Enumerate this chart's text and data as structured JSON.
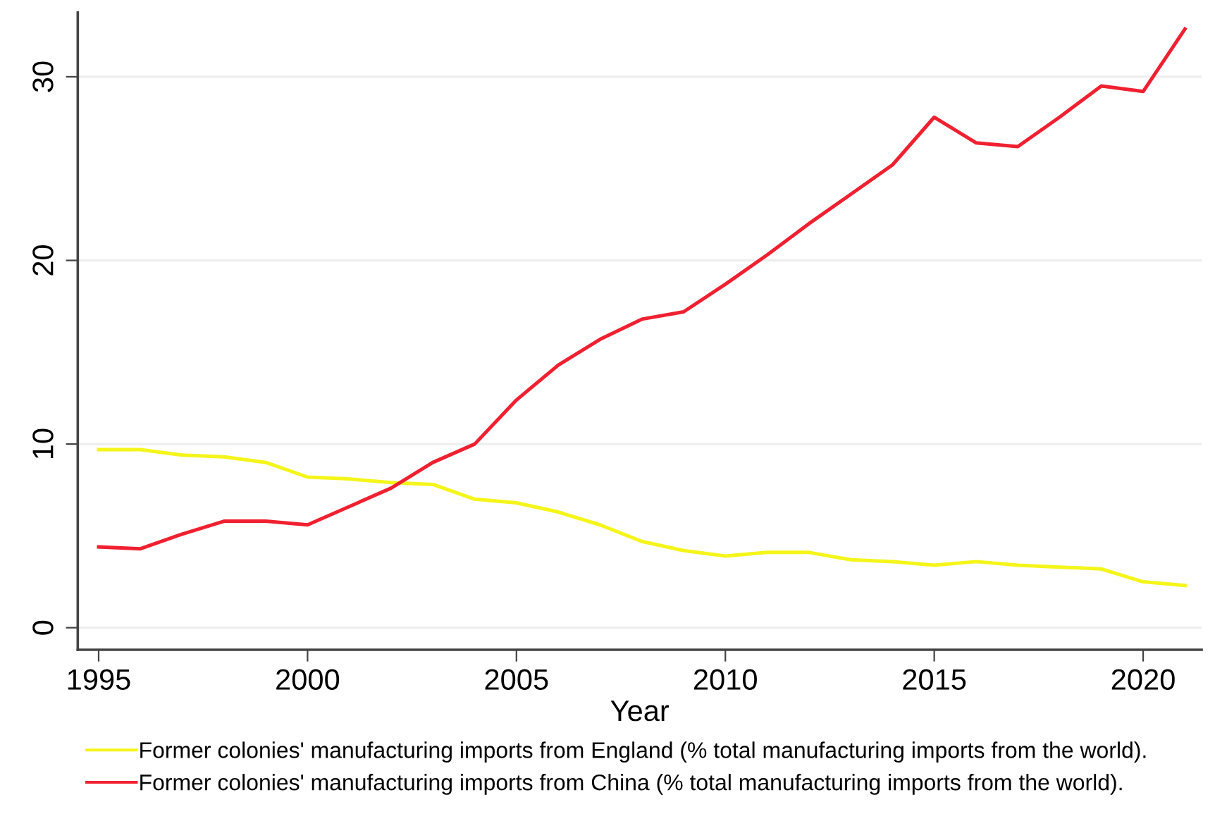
{
  "chart_data": {
    "type": "line",
    "xlabel": "Year",
    "x": [
      1995,
      1996,
      1997,
      1998,
      1999,
      2000,
      2001,
      2002,
      2003,
      2004,
      2005,
      2006,
      2007,
      2008,
      2009,
      2010,
      2011,
      2012,
      2013,
      2014,
      2015,
      2016,
      2017,
      2018,
      2019,
      2020,
      2021
    ],
    "series": [
      {
        "name": "Former colonies' manufacturing imports from England (% total manufacturing imports from the world).",
        "color": "#f5f51a",
        "values": [
          9.7,
          9.7,
          9.4,
          9.3,
          9.0,
          8.2,
          8.1,
          7.9,
          7.8,
          7.0,
          6.8,
          6.3,
          5.6,
          4.7,
          4.2,
          3.9,
          4.1,
          4.1,
          3.7,
          3.6,
          3.4,
          3.6,
          3.4,
          3.3,
          3.2,
          2.5,
          2.3
        ]
      },
      {
        "name": "Former colonies' manufacturing imports from China (% total manufacturing imports from the world).",
        "color": "#f02030",
        "values": [
          4.4,
          4.3,
          5.1,
          5.8,
          5.8,
          5.6,
          6.6,
          7.6,
          9.0,
          10.0,
          12.4,
          14.3,
          15.7,
          16.8,
          17.2,
          18.7,
          20.3,
          22.0,
          23.6,
          25.2,
          27.8,
          26.4,
          26.2,
          27.8,
          29.5,
          29.2,
          32.6
        ]
      }
    ],
    "xlim": [
      1994.5,
      2021.4
    ],
    "ylim": [
      -1.2,
      33.5
    ],
    "xticks": [
      1995,
      2000,
      2005,
      2010,
      2015,
      2020
    ],
    "yticks": [
      0,
      10,
      20,
      30
    ],
    "grid": "y",
    "legend": "bottom",
    "line_style": "solid",
    "marker": "none"
  }
}
